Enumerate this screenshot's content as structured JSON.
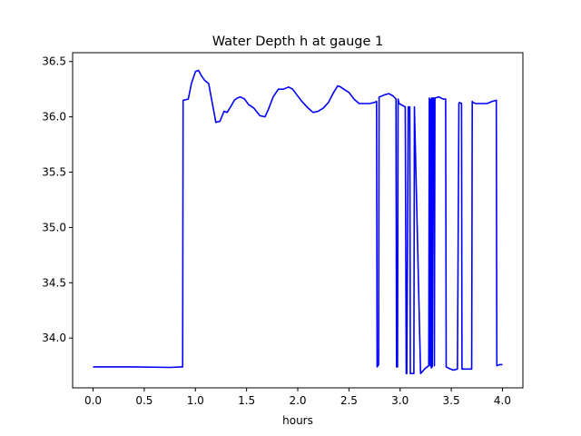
{
  "chart_data": {
    "type": "line",
    "title": "Water Depth h at gauge 1",
    "xlabel": "hours",
    "ylabel": "",
    "xlim": [
      -0.2,
      4.2
    ],
    "ylim": [
      33.55,
      36.58
    ],
    "xticks": [
      0.0,
      0.5,
      1.0,
      1.5,
      2.0,
      2.5,
      3.0,
      3.5,
      4.0
    ],
    "xtick_labels": [
      "0.0",
      "0.5",
      "1.0",
      "1.5",
      "2.0",
      "2.5",
      "3.0",
      "3.5",
      "4.0"
    ],
    "yticks": [
      34.0,
      34.5,
      35.0,
      35.5,
      36.0,
      36.5
    ],
    "ytick_labels": [
      "34.0",
      "34.5",
      "35.0",
      "35.5",
      "36.0",
      "36.5"
    ],
    "grid": false,
    "line_color": "#0000ff",
    "series": [
      {
        "x": [
          0.0,
          0.4,
          0.75,
          0.865,
          0.875,
          0.88,
          0.93,
          0.96,
          1.0,
          1.03,
          1.06,
          1.09,
          1.13,
          1.17,
          1.2,
          1.24,
          1.28,
          1.31,
          1.35,
          1.38,
          1.41,
          1.44,
          1.48,
          1.52,
          1.57,
          1.63,
          1.68,
          1.71,
          1.76,
          1.81,
          1.86,
          1.91,
          1.95,
          1.99,
          2.04,
          2.1,
          2.15,
          2.2,
          2.25,
          2.3,
          2.35,
          2.39,
          2.42,
          2.45,
          2.5,
          2.55,
          2.6,
          2.64,
          2.7,
          2.75,
          2.77,
          2.775,
          2.79,
          2.795,
          2.8,
          2.85,
          2.89,
          2.93,
          2.96,
          2.965,
          2.975,
          2.98,
          2.99,
          3.05,
          3.06,
          3.065,
          3.08,
          3.085,
          3.095,
          3.1,
          3.13,
          3.135,
          3.14,
          3.2,
          3.25,
          3.28,
          3.285,
          3.295,
          3.3,
          3.305,
          3.31,
          3.315,
          3.32,
          3.33,
          3.335,
          3.34,
          3.38,
          3.42,
          3.445,
          3.45,
          3.47,
          3.52,
          3.56,
          3.575,
          3.58,
          3.6,
          3.605,
          3.61,
          3.62,
          3.7,
          3.705,
          3.71,
          3.74,
          3.8,
          3.85,
          3.9,
          3.94,
          3.945,
          3.95,
          3.97,
          4.0
        ],
        "y": [
          33.74,
          33.74,
          33.735,
          33.74,
          33.74,
          36.15,
          36.16,
          36.3,
          36.41,
          36.42,
          36.37,
          36.33,
          36.3,
          36.1,
          35.95,
          35.96,
          36.05,
          36.04,
          36.1,
          36.15,
          36.17,
          36.18,
          36.16,
          36.11,
          36.08,
          36.01,
          36.0,
          36.06,
          36.18,
          36.25,
          36.25,
          36.27,
          36.25,
          36.2,
          36.14,
          36.08,
          36.04,
          36.05,
          36.08,
          36.13,
          36.22,
          36.28,
          36.27,
          36.25,
          36.22,
          36.16,
          36.12,
          36.12,
          36.12,
          36.13,
          36.14,
          33.74,
          33.76,
          36.18,
          36.18,
          36.2,
          36.21,
          36.19,
          36.16,
          33.74,
          33.74,
          36.16,
          36.12,
          36.09,
          33.68,
          33.68,
          36.09,
          36.09,
          36.09,
          33.68,
          33.68,
          33.68,
          36.09,
          33.68,
          33.73,
          33.75,
          36.17,
          33.75,
          36.16,
          33.73,
          36.17,
          33.74,
          36.17,
          36.17,
          33.75,
          36.17,
          36.18,
          36.16,
          36.16,
          33.74,
          33.73,
          33.71,
          33.72,
          36.12,
          36.13,
          36.12,
          33.72,
          33.72,
          33.72,
          33.72,
          36.14,
          36.13,
          36.12,
          36.12,
          36.12,
          36.14,
          36.15,
          33.75,
          33.75,
          33.76,
          33.76
        ]
      }
    ]
  }
}
